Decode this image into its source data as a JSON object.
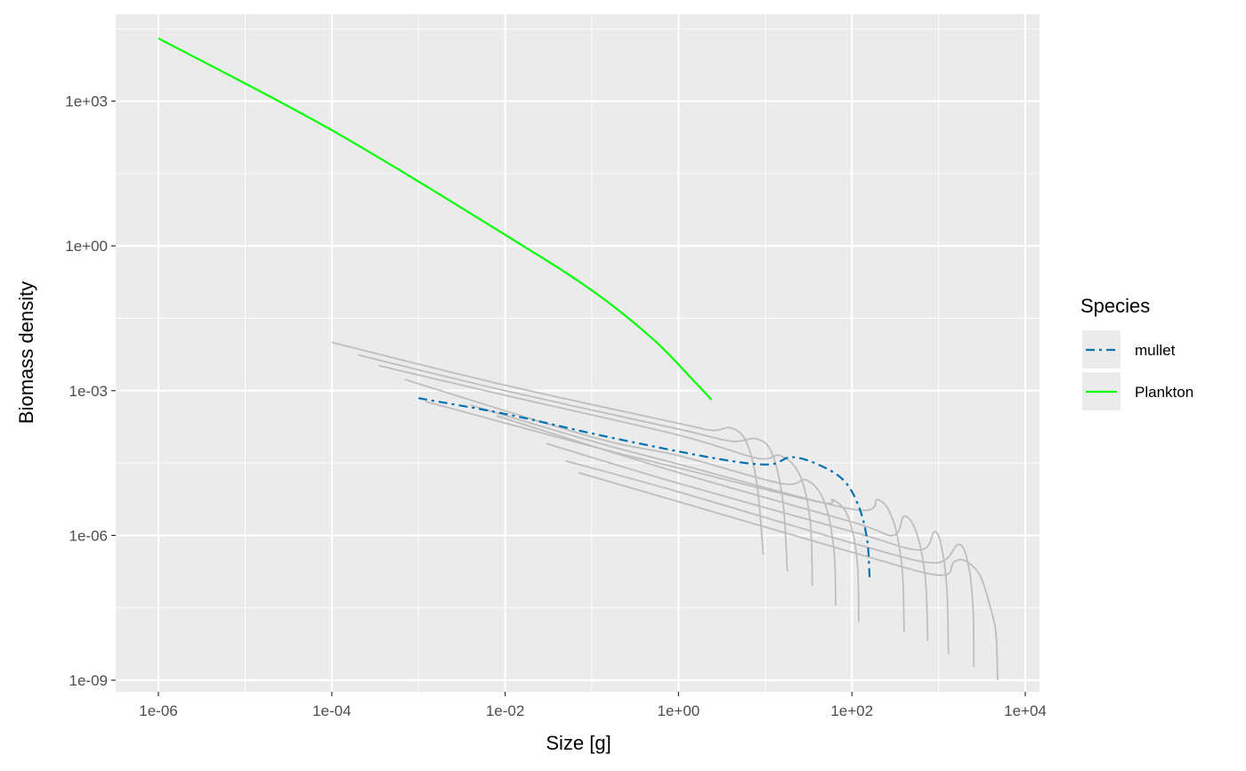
{
  "chart_data": {
    "type": "line",
    "title": "",
    "xlabel": "Size [g]",
    "ylabel": "Biomass density",
    "x_scale": "log10",
    "y_scale": "log10",
    "xlim": [
      3e-07,
      15000.0
    ],
    "ylim": [
      5e-10,
      200000.0
    ],
    "x_ticks": [
      1e-06,
      0.0001,
      0.01,
      1,
      100.0,
      10000.0
    ],
    "x_tick_labels": [
      "1e-06",
      "1e-04",
      "1e-02",
      "1e+00",
      "1e+02",
      "1e+04"
    ],
    "y_ticks": [
      1e-09,
      1e-06,
      0.001,
      1,
      1000.0
    ],
    "y_tick_labels": [
      "1e-09",
      "1e-06",
      "1e-03",
      "1e+00",
      "1e+03"
    ],
    "grid": true,
    "legend": {
      "title": "Species",
      "position": "right",
      "entries": [
        {
          "label": "mullet",
          "color": "#0072B2",
          "dash": "dotdash"
        },
        {
          "label": "Plankton",
          "color": "#00FF00",
          "dash": "solid"
        }
      ]
    },
    "series": [
      {
        "name": "Plankton",
        "color": "#00FF00",
        "points": [
          [
            1e-06,
            20000
          ],
          [
            0.0001,
            250
          ],
          [
            0.01,
            1.7
          ],
          [
            0.1,
            0.12
          ],
          [
            0.5,
            0.012
          ],
          [
            1.5,
            0.0016
          ],
          [
            2.4,
            0.00065
          ]
        ]
      },
      {
        "name": "mullet",
        "color": "#0072B2",
        "points": [
          [
            0.001,
            0.0007
          ],
          [
            0.01,
            0.00033
          ],
          [
            0.1,
            0.00013
          ],
          [
            1,
            5.5e-05
          ],
          [
            5,
            3.3e-05
          ],
          [
            12,
            3e-05
          ],
          [
            20,
            4.2e-05
          ],
          [
            40,
            3e-05
          ],
          [
            80,
            1.4e-05
          ],
          [
            120,
            4e-06
          ],
          [
            150,
            8e-07
          ],
          [
            160,
            1.3e-07
          ]
        ]
      },
      {
        "name": "",
        "color": "#BEBEBE",
        "points": [
          [
            0.0001,
            0.01
          ],
          [
            0.01,
            0.0013
          ],
          [
            1,
            0.00021
          ],
          [
            2.5,
            0.00015
          ],
          [
            4,
            0.00017
          ],
          [
            6,
            9e-05
          ],
          [
            8,
            1.2e-05
          ],
          [
            9.5,
            4e-07
          ]
        ]
      },
      {
        "name": "",
        "color": "#BEBEBE",
        "points": [
          [
            0.0002,
            0.0055
          ],
          [
            0.01,
            0.001
          ],
          [
            1,
            0.00016
          ],
          [
            4,
            9e-05
          ],
          [
            8,
            0.0001
          ],
          [
            12,
            5e-05
          ],
          [
            16,
            5e-06
          ],
          [
            18,
            1.8e-07
          ]
        ]
      },
      {
        "name": "",
        "color": "#BEBEBE",
        "points": [
          [
            0.00035,
            0.0033
          ],
          [
            0.01,
            0.0008
          ],
          [
            1,
            0.00012
          ],
          [
            8,
            4e-05
          ],
          [
            15,
            4.5e-05
          ],
          [
            25,
            1.8e-05
          ],
          [
            33,
            2e-06
          ],
          [
            35,
            9e-08
          ]
        ]
      },
      {
        "name": "",
        "color": "#BEBEBE",
        "points": [
          [
            0.0007,
            0.0017
          ],
          [
            0.1,
            0.00011
          ],
          [
            1,
            4.5e-05
          ],
          [
            15,
            1.2e-05
          ],
          [
            30,
            1.4e-05
          ],
          [
            48,
            5e-06
          ],
          [
            62,
            5e-07
          ],
          [
            65,
            3.5e-08
          ]
        ]
      },
      {
        "name": "",
        "color": "#BEBEBE",
        "points": [
          [
            0.0012,
            0.0006
          ],
          [
            0.1,
            7e-05
          ],
          [
            1,
            2.5e-05
          ],
          [
            40,
            5e-06
          ],
          [
            60,
            5.5e-06
          ],
          [
            90,
            2.5e-06
          ],
          [
            115,
            3e-07
          ],
          [
            120,
            1.6e-08
          ]
        ]
      },
      {
        "name": "",
        "color": "#BEBEBE",
        "points": [
          [
            0.004,
            0.0005
          ],
          [
            0.1,
            9e-05
          ],
          [
            1,
            3e-05
          ],
          [
            100,
            3.5e-06
          ],
          [
            200,
            5.5e-06
          ],
          [
            300,
            2e-06
          ],
          [
            380,
            2e-07
          ],
          [
            400,
            1e-08
          ]
        ]
      },
      {
        "name": "",
        "color": "#BEBEBE",
        "points": [
          [
            0.008,
            0.0003
          ],
          [
            1,
            2e-05
          ],
          [
            100,
            1.9e-06
          ],
          [
            300,
            1e-06
          ],
          [
            400,
            2.5e-06
          ],
          [
            550,
            1.2e-06
          ],
          [
            700,
            1.4e-07
          ],
          [
            750,
            6.5e-09
          ]
        ]
      },
      {
        "name": "",
        "color": "#BEBEBE",
        "points": [
          [
            0.03,
            8e-05
          ],
          [
            1,
            1.2e-05
          ],
          [
            100,
            1.2e-06
          ],
          [
            600,
            5e-07
          ],
          [
            900,
            1.2e-06
          ],
          [
            1100,
            5e-07
          ],
          [
            1250,
            7e-08
          ],
          [
            1300,
            3.5e-09
          ]
        ]
      },
      {
        "name": "",
        "color": "#BEBEBE",
        "points": [
          [
            0.05,
            3.5e-05
          ],
          [
            1,
            8e-06
          ],
          [
            100,
            7e-07
          ],
          [
            900,
            2.7e-07
          ],
          [
            1700,
            6.5e-07
          ],
          [
            2200,
            2.5e-07
          ],
          [
            2500,
            3e-08
          ],
          [
            2550,
            1.9e-09
          ]
        ]
      },
      {
        "name": "",
        "color": "#BEBEBE",
        "points": [
          [
            0.07,
            2e-05
          ],
          [
            1,
            5e-06
          ],
          [
            100,
            4.5e-07
          ],
          [
            1000,
            1.5e-07
          ],
          [
            1500,
            2.8e-07
          ],
          [
            2000,
            3e-07
          ],
          [
            3000,
            1.5e-07
          ],
          [
            4000,
            3e-08
          ],
          [
            4600,
            9e-09
          ],
          [
            4800,
            1e-09
          ]
        ]
      }
    ]
  }
}
